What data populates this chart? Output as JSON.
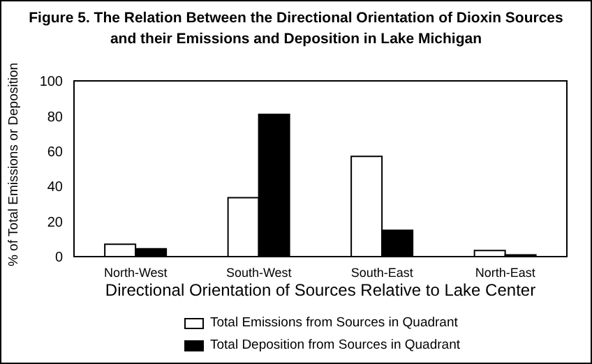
{
  "chart_data": {
    "type": "bar",
    "title": "Figure 5. The Relation Between the Directional Orientation of Dioxin Sources and their Emissions and Deposition in Lake Michigan",
    "xlabel": "Directional Orientation of Sources Relative to Lake Center",
    "ylabel": "% of Total Emissions or Deposition",
    "categories": [
      "North-West",
      "South-West",
      "South-East",
      "North-East"
    ],
    "series": [
      {
        "name": "Total Emissions from Sources in Quadrant",
        "color": "#ffffff",
        "values": [
          7,
          33.5,
          57,
          3.5
        ]
      },
      {
        "name": "Total Deposition from Sources in Quadrant",
        "color": "#000000",
        "values": [
          4.5,
          81,
          15,
          1
        ]
      }
    ],
    "ylim": [
      0,
      100
    ],
    "yticks": [
      0,
      20,
      40,
      60,
      80,
      100
    ],
    "grid": false,
    "legend": "bottom"
  }
}
